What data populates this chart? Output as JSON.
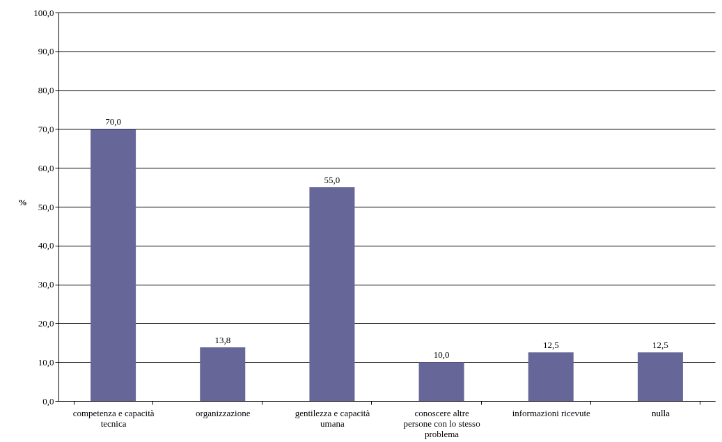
{
  "chart_data": {
    "type": "bar",
    "ylabel": "%",
    "categories": [
      "competenza e capacità tecnica",
      "organizzazione",
      "gentilezza e capacità umana",
      "conoscere altre persone con lo stesso problema",
      "informazioni ricevute",
      "nulla"
    ],
    "values": [
      70.0,
      13.8,
      55.0,
      10.0,
      12.5,
      12.5
    ],
    "value_labels": [
      "70,0",
      "13,8",
      "55,0",
      "10,0",
      "12,5",
      "12,5"
    ],
    "color": "#666699",
    "ylim": [
      0,
      100
    ],
    "yticks": [
      {
        "value": 0,
        "label": "0,0"
      },
      {
        "value": 10,
        "label": "10,0"
      },
      {
        "value": 20,
        "label": "20,0"
      },
      {
        "value": 30,
        "label": "30,0"
      },
      {
        "value": 40,
        "label": "40,0"
      },
      {
        "value": 50,
        "label": "50,0"
      },
      {
        "value": 60,
        "label": "60,0"
      },
      {
        "value": 70,
        "label": "70,0"
      },
      {
        "value": 80,
        "label": "80,0"
      },
      {
        "value": 90,
        "label": "90,0"
      },
      {
        "value": 100,
        "label": "100,0"
      }
    ],
    "grid": "y"
  }
}
